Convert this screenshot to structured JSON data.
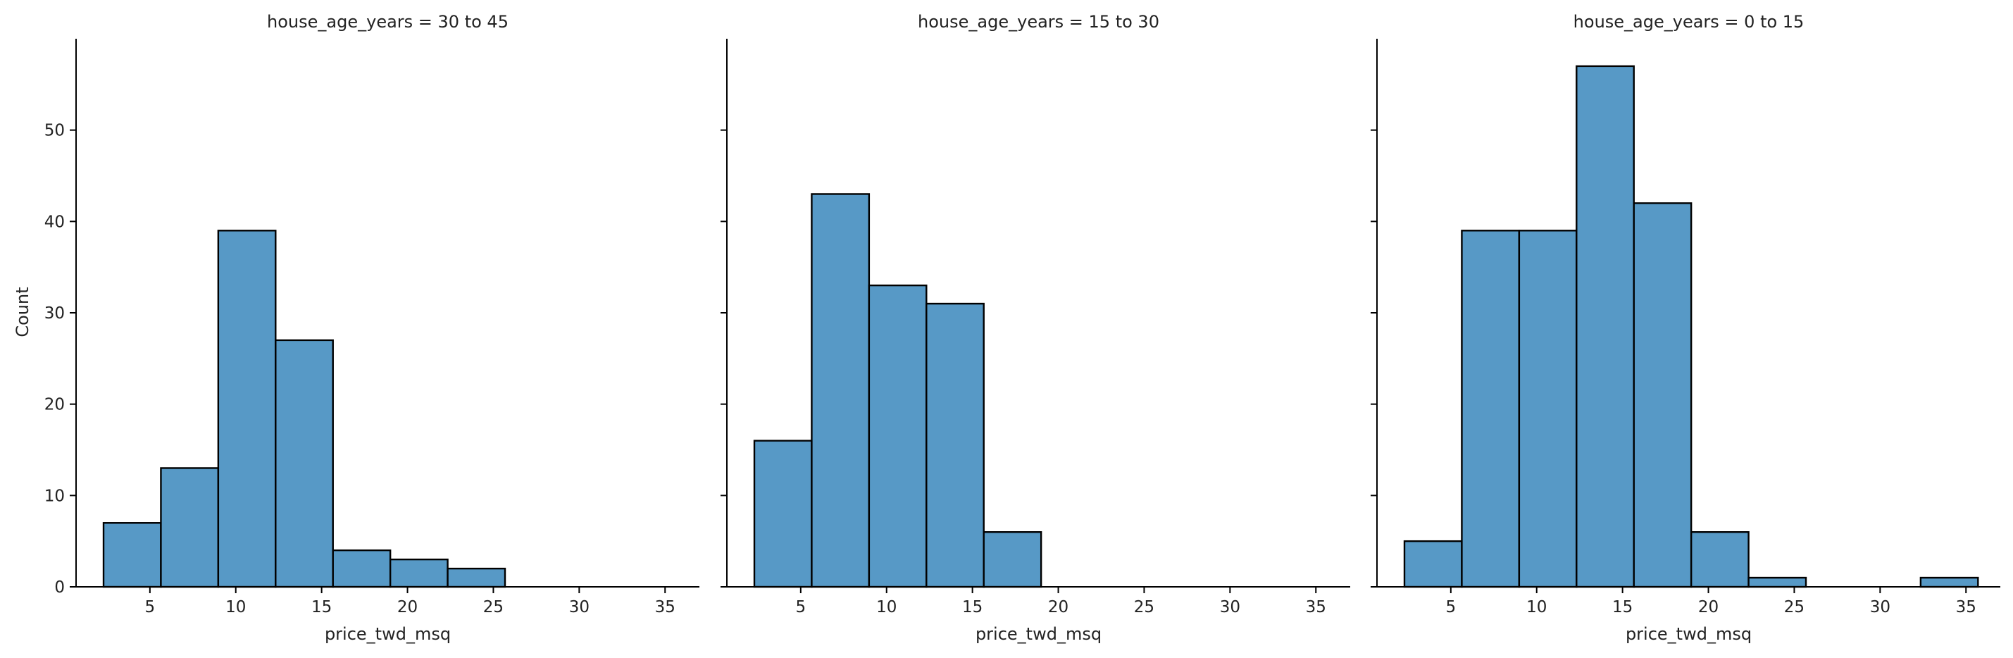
{
  "chart_data": {
    "type": "bar",
    "subtype": "histogram-facet-grid",
    "bar_color": "#5799c6",
    "edge_color": "#000000",
    "y_label": "Count",
    "x_label": "price_twd_msq",
    "xlim": [
      0.7,
      37.0
    ],
    "ylim": [
      0,
      60
    ],
    "x_ticks": [
      5,
      10,
      15,
      20,
      25,
      30,
      35
    ],
    "y_ticks": [
      0,
      10,
      20,
      30,
      40,
      50
    ],
    "bin_edges": [
      2.3,
      5.64,
      8.98,
      12.32,
      15.66,
      19.0,
      22.34,
      25.68,
      29.02,
      32.36,
      35.7
    ],
    "facets": [
      {
        "title": "house_age_years = 30 to 45",
        "counts": [
          7,
          13,
          39,
          27,
          4,
          3,
          2,
          0,
          0,
          0
        ]
      },
      {
        "title": "house_age_years = 15 to 30",
        "counts": [
          16,
          43,
          33,
          31,
          6,
          0,
          0,
          0,
          0,
          0
        ]
      },
      {
        "title": "house_age_years = 0 to 15",
        "counts": [
          5,
          39,
          39,
          57,
          42,
          6,
          1,
          0,
          0,
          1
        ]
      }
    ]
  }
}
